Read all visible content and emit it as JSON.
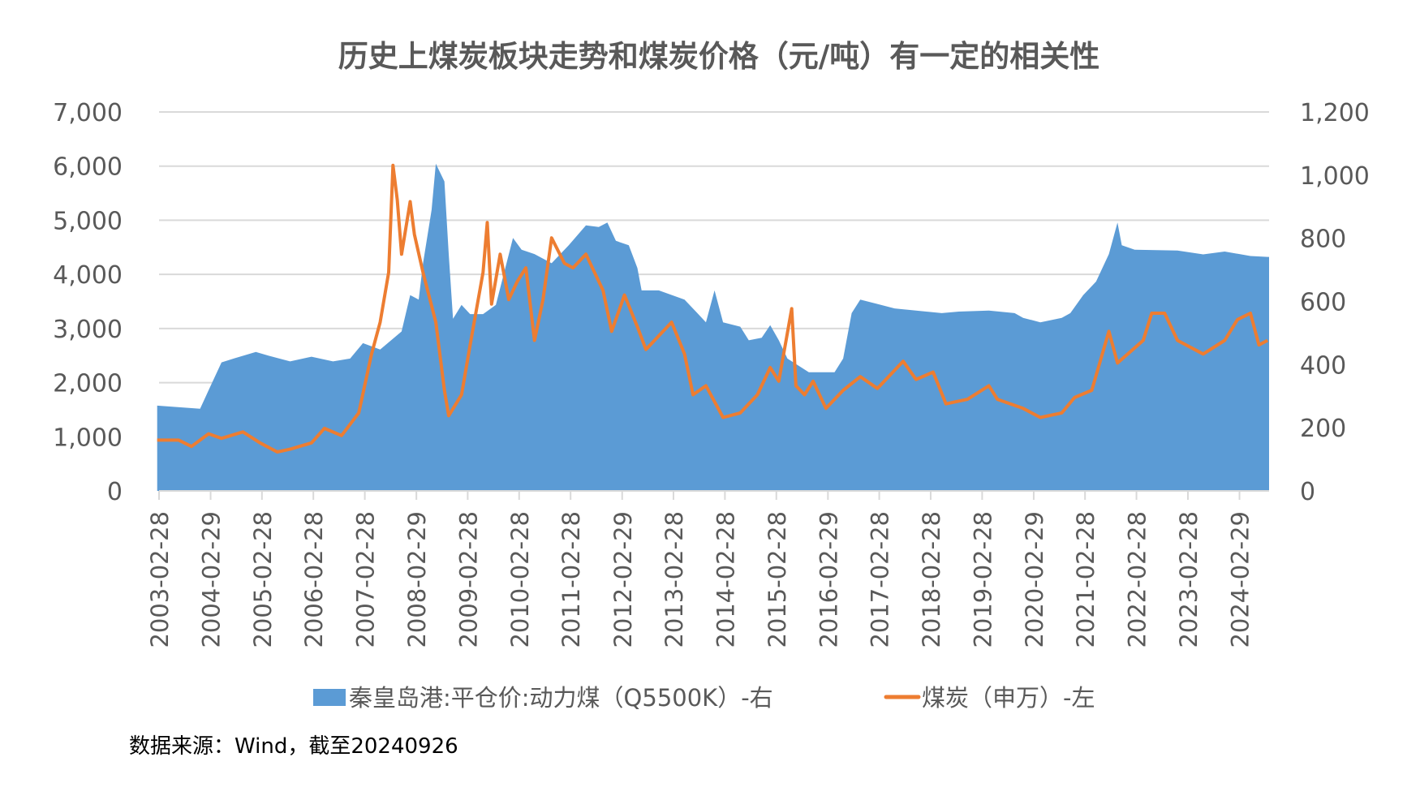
{
  "chart_data": {
    "type": "area+line",
    "title": "历史上煤炭板块走势和煤炭价格（元/吨）有一定的相关性",
    "source_note": "数据来源：Wind，截至20240926",
    "left_axis": {
      "range": [
        0,
        7000
      ],
      "ticks": [
        "0",
        "1,000",
        "2,000",
        "3,000",
        "4,000",
        "5,000",
        "6,000",
        "7,000"
      ]
    },
    "right_axis": {
      "range": [
        0,
        1200
      ],
      "ticks": [
        "0",
        "200",
        "400",
        "600",
        "800",
        "1,000",
        "1,200"
      ]
    },
    "x_axis": {
      "range": [
        "2003-02-28",
        "2024-09-26"
      ],
      "ticks": [
        "2003-02-28",
        "2004-02-29",
        "2005-02-28",
        "2006-02-28",
        "2007-02-28",
        "2008-02-29",
        "2009-02-28",
        "2010-02-28",
        "2011-02-28",
        "2012-02-29",
        "2013-02-28",
        "2014-02-28",
        "2015-02-28",
        "2016-02-29",
        "2017-02-28",
        "2018-02-28",
        "2019-02-28",
        "2020-02-29",
        "2021-02-28",
        "2022-02-28",
        "2023-02-28",
        "2024-02-29"
      ]
    },
    "grid": true,
    "legend_position": "bottom",
    "series": [
      {
        "name": "秦皇岛港:平仓价:动力煤（Q5500K）-右",
        "type": "area",
        "axis": "right",
        "color": "#5B9BD5",
        "points": [
          [
            "2003-02",
            270
          ],
          [
            "2003-12",
            260
          ],
          [
            "2004-02",
            319
          ],
          [
            "2004-05",
            407
          ],
          [
            "2004-08",
            420
          ],
          [
            "2005-01",
            440
          ],
          [
            "2005-04",
            428
          ],
          [
            "2005-09",
            410
          ],
          [
            "2006-02",
            425
          ],
          [
            "2006-07",
            410
          ],
          [
            "2006-11",
            419
          ],
          [
            "2007-02",
            468
          ],
          [
            "2007-06",
            448
          ],
          [
            "2007-11",
            505
          ],
          [
            "2008-01",
            620
          ],
          [
            "2008-03",
            606
          ],
          [
            "2008-04",
            720
          ],
          [
            "2008-06",
            890
          ],
          [
            "2008-07",
            1036
          ],
          [
            "2008-09",
            980
          ],
          [
            "2008-10",
            750
          ],
          [
            "2008-11",
            545
          ],
          [
            "2009-01",
            589
          ],
          [
            "2009-03",
            560
          ],
          [
            "2009-06",
            560
          ],
          [
            "2009-09",
            589
          ],
          [
            "2010-01",
            801
          ],
          [
            "2010-03",
            764
          ],
          [
            "2010-06",
            750
          ],
          [
            "2010-10",
            721
          ],
          [
            "2011-02",
            778
          ],
          [
            "2011-06",
            841
          ],
          [
            "2011-09",
            836
          ],
          [
            "2011-11",
            850
          ],
          [
            "2012-01",
            792
          ],
          [
            "2012-04",
            778
          ],
          [
            "2012-06",
            706
          ],
          [
            "2012-07",
            635
          ],
          [
            "2012-11",
            635
          ],
          [
            "2013-05",
            606
          ],
          [
            "2013-08",
            563
          ],
          [
            "2013-10",
            534
          ],
          [
            "2013-12",
            635
          ],
          [
            "2014-02",
            534
          ],
          [
            "2014-06",
            520
          ],
          [
            "2014-08",
            477
          ],
          [
            "2014-11",
            485
          ],
          [
            "2015-01",
            525
          ],
          [
            "2015-03",
            477
          ],
          [
            "2015-05",
            419
          ],
          [
            "2015-10",
            376
          ],
          [
            "2016-04",
            376
          ],
          [
            "2016-06",
            419
          ],
          [
            "2016-08",
            563
          ],
          [
            "2016-10",
            606
          ],
          [
            "2017-02",
            592
          ],
          [
            "2017-06",
            578
          ],
          [
            "2017-11",
            571
          ],
          [
            "2018-05",
            563
          ],
          [
            "2018-09",
            568
          ],
          [
            "2019-04",
            571
          ],
          [
            "2019-10",
            563
          ],
          [
            "2019-12",
            548
          ],
          [
            "2020-04",
            534
          ],
          [
            "2020-09",
            548
          ],
          [
            "2020-11",
            563
          ],
          [
            "2021-02",
            620
          ],
          [
            "2021-05",
            663
          ],
          [
            "2021-08",
            750
          ],
          [
            "2021-10",
            850
          ],
          [
            "2021-11",
            778
          ],
          [
            "2022-02",
            764
          ],
          [
            "2022-12",
            761
          ],
          [
            "2023-06",
            749
          ],
          [
            "2023-11",
            758
          ],
          [
            "2024-05",
            744
          ],
          [
            "2024-09",
            741
          ]
        ]
      },
      {
        "name": "煤炭（申万）-左",
        "type": "line",
        "axis": "left",
        "color": "#ED7D31",
        "points": [
          [
            "2003-02",
            938
          ],
          [
            "2003-07",
            938
          ],
          [
            "2003-10",
            821
          ],
          [
            "2004-02",
            1055
          ],
          [
            "2004-05",
            972
          ],
          [
            "2004-10",
            1089
          ],
          [
            "2005-02",
            888
          ],
          [
            "2005-06",
            720
          ],
          [
            "2005-09",
            770
          ],
          [
            "2006-02",
            888
          ],
          [
            "2006-05",
            1156
          ],
          [
            "2006-09",
            1022
          ],
          [
            "2007-01",
            1440
          ],
          [
            "2007-04",
            2529
          ],
          [
            "2007-06",
            3116
          ],
          [
            "2007-08",
            4037
          ],
          [
            "2007-09",
            6013
          ],
          [
            "2007-10",
            5377
          ],
          [
            "2007-11",
            4372
          ],
          [
            "2008-01",
            5343
          ],
          [
            "2008-02",
            4740
          ],
          [
            "2008-04",
            4037
          ],
          [
            "2008-07",
            3116
          ],
          [
            "2008-09",
            1859
          ],
          [
            "2008-10",
            1390
          ],
          [
            "2009-01",
            1776
          ],
          [
            "2009-03",
            2697
          ],
          [
            "2009-06",
            4037
          ],
          [
            "2009-07",
            4958
          ],
          [
            "2009-08",
            3451
          ],
          [
            "2009-10",
            4372
          ],
          [
            "2009-12",
            3534
          ],
          [
            "2010-02",
            3869
          ],
          [
            "2010-04",
            4121
          ],
          [
            "2010-06",
            2781
          ],
          [
            "2010-08",
            3534
          ],
          [
            "2010-10",
            4673
          ],
          [
            "2011-01",
            4204
          ],
          [
            "2011-03",
            4121
          ],
          [
            "2011-06",
            4372
          ],
          [
            "2011-10",
            3702
          ],
          [
            "2011-12",
            2948
          ],
          [
            "2012-03",
            3618
          ],
          [
            "2012-06",
            3032
          ],
          [
            "2012-08",
            2613
          ],
          [
            "2013-02",
            3116
          ],
          [
            "2013-05",
            2529
          ],
          [
            "2013-07",
            1776
          ],
          [
            "2013-10",
            1943
          ],
          [
            "2014-02",
            1357
          ],
          [
            "2014-06",
            1441
          ],
          [
            "2014-10",
            1776
          ],
          [
            "2015-01",
            2278
          ],
          [
            "2015-03",
            2027
          ],
          [
            "2015-06",
            3367
          ],
          [
            "2015-07",
            1943
          ],
          [
            "2015-09",
            1776
          ],
          [
            "2015-11",
            2027
          ],
          [
            "2016-02",
            1524
          ],
          [
            "2016-06",
            1859
          ],
          [
            "2016-10",
            2111
          ],
          [
            "2017-02",
            1893
          ],
          [
            "2017-08",
            2395
          ],
          [
            "2017-11",
            2060
          ],
          [
            "2018-03",
            2194
          ],
          [
            "2018-06",
            1608
          ],
          [
            "2018-11",
            1692
          ],
          [
            "2019-04",
            1943
          ],
          [
            "2019-06",
            1692
          ],
          [
            "2019-12",
            1524
          ],
          [
            "2020-04",
            1357
          ],
          [
            "2020-09",
            1441
          ],
          [
            "2020-12",
            1725
          ],
          [
            "2021-04",
            1859
          ],
          [
            "2021-08",
            2948
          ],
          [
            "2021-10",
            2362
          ],
          [
            "2022-04",
            2781
          ],
          [
            "2022-06",
            3283
          ],
          [
            "2022-09",
            3283
          ],
          [
            "2022-12",
            2781
          ],
          [
            "2023-06",
            2529
          ],
          [
            "2023-11",
            2781
          ],
          [
            "2024-02",
            3166
          ],
          [
            "2024-05",
            3283
          ],
          [
            "2024-07",
            2697
          ],
          [
            "2024-09",
            2781
          ]
        ]
      }
    ]
  },
  "colors": {
    "text": "#595959",
    "grid": "#D9D9D9",
    "area": "#5B9BD5",
    "line": "#ED7D31"
  }
}
